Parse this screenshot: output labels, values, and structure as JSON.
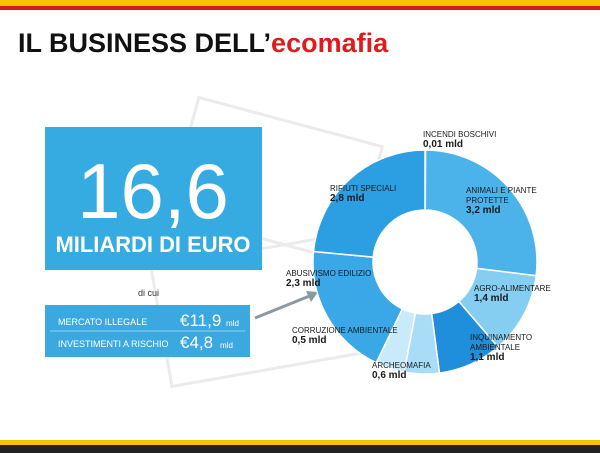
{
  "header": {
    "title": "IL BUSINESS DELL’",
    "title_highlight": "ecomafia"
  },
  "panel": {
    "total": "16,6",
    "total_unit": "MILIARDI DI EURO",
    "of_which": "di cui",
    "items": [
      {
        "label": "MERCATO ILLEGALE",
        "amount": "€11,9",
        "unit": "mld"
      },
      {
        "label": "INVESTIMENTI A RISCHIO",
        "amount": "€4,8",
        "unit": "mld"
      }
    ]
  },
  "chart_data": {
    "type": "donut",
    "categories": [
      "INCENDI BOSCHIVI",
      "ANIMALI E PIANTE PROTETTE",
      "AGRO-ALIMENTARE",
      "INQUINAMENTO AMBIENTALE",
      "ARCHEOMAFIA",
      "CORRUZIONE AMBIENTALE",
      "ABUSIVISMO EDILIZIO",
      "RIFIUTI SPECIALI"
    ],
    "values": [
      0.01,
      3.2,
      1.4,
      1.1,
      0.6,
      0.5,
      2.3,
      2.8
    ],
    "value_labels": [
      "0,01 mld",
      "3,2 mld",
      "1,4 mld",
      "1,1 mld",
      "0,6 mld",
      "0,5 mld",
      "2,3 mld",
      "2,8 mld"
    ],
    "colors": [
      "#e8f5fc",
      "#4cb3ea",
      "#86cdf2",
      "#1f8fdb",
      "#a9ddf7",
      "#c9eafa",
      "#3aa7e6",
      "#2c9fe2"
    ]
  }
}
